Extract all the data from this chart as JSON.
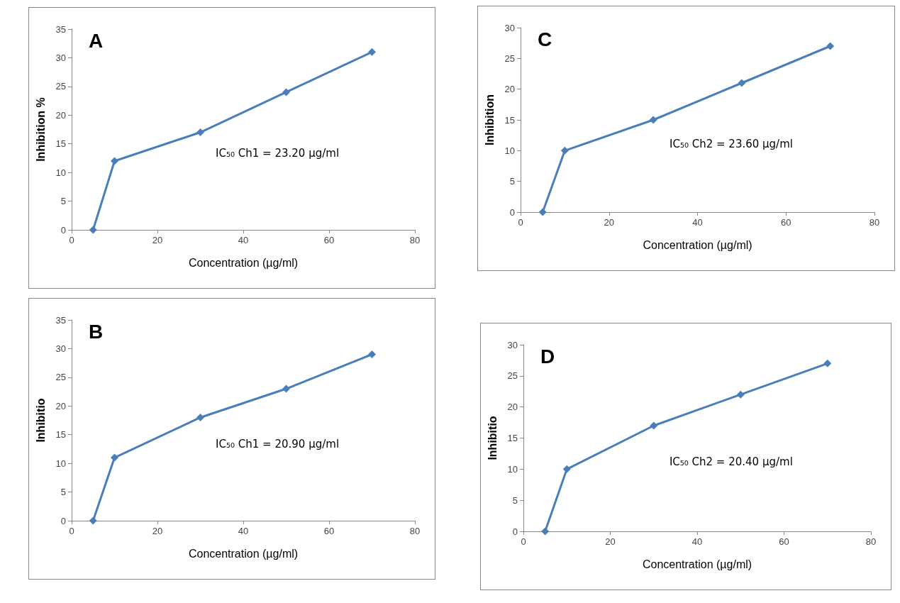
{
  "chart_data": [
    {
      "type": "line",
      "title": "A",
      "xlabel": "Concentration (µg/ml)",
      "ylabel": "Inhibition %",
      "x": [
        5,
        10,
        30,
        50,
        70
      ],
      "series": [
        {
          "color": "#4a7ebb",
          "values": [
            0,
            12,
            17,
            24,
            31
          ]
        }
      ],
      "xlim": [
        0,
        80
      ],
      "xticks": [
        0,
        20,
        40,
        60,
        80
      ],
      "ylim": [
        0,
        35
      ],
      "yticks": [
        0,
        5,
        10,
        15,
        20,
        25,
        30,
        35
      ],
      "annotations": [
        "IC₅₀ Ch1 = 23.20 µg/ml"
      ],
      "marker": "diamond",
      "line_style": "solid",
      "grid": false
    },
    {
      "type": "line",
      "title": "C",
      "xlabel": "Concentration (µg/ml)",
      "ylabel": "Inhibition",
      "x": [
        5,
        10,
        30,
        50,
        70
      ],
      "series": [
        {
          "color": "#4a7ebb",
          "values": [
            0,
            10,
            15,
            21,
            27
          ]
        }
      ],
      "xlim": [
        0,
        80
      ],
      "xticks": [
        0,
        20,
        40,
        60,
        80
      ],
      "ylim": [
        0,
        30
      ],
      "yticks": [
        0,
        5,
        10,
        15,
        20,
        25,
        30
      ],
      "annotations": [
        "IC₅₀ Ch2 = 23.60 µg/ml"
      ],
      "marker": "diamond",
      "line_style": "solid",
      "grid": false
    },
    {
      "type": "line",
      "title": "B",
      "xlabel": "Concentration (µg/ml)",
      "ylabel": "Inhibitio",
      "x": [
        5,
        10,
        30,
        50,
        70
      ],
      "series": [
        {
          "color": "#4a7ebb",
          "values": [
            0,
            11,
            18,
            23,
            29
          ]
        }
      ],
      "xlim": [
        0,
        80
      ],
      "xticks": [
        0,
        20,
        40,
        60,
        80
      ],
      "ylim": [
        0,
        35
      ],
      "yticks": [
        0,
        5,
        10,
        15,
        20,
        25,
        30,
        35
      ],
      "annotations": [
        "IC₅₀ Ch1 = 20.90 µg/ml"
      ],
      "marker": "diamond",
      "line_style": "solid",
      "grid": false
    },
    {
      "type": "line",
      "title": "D",
      "xlabel": "Concentration (µg/ml)",
      "ylabel": "Inhibitio",
      "x": [
        5,
        10,
        30,
        50,
        70
      ],
      "series": [
        {
          "color": "#4a7ebb",
          "values": [
            0,
            10,
            17,
            22,
            27
          ]
        }
      ],
      "xlim": [
        0,
        80
      ],
      "xticks": [
        0,
        20,
        40,
        60,
        80
      ],
      "ylim": [
        0,
        30
      ],
      "yticks": [
        0,
        5,
        10,
        15,
        20,
        25,
        30
      ],
      "annotations": [
        "IC₅₀ Ch2 = 20.40 µg/ml"
      ],
      "marker": "diamond",
      "line_style": "solid",
      "grid": false
    }
  ]
}
